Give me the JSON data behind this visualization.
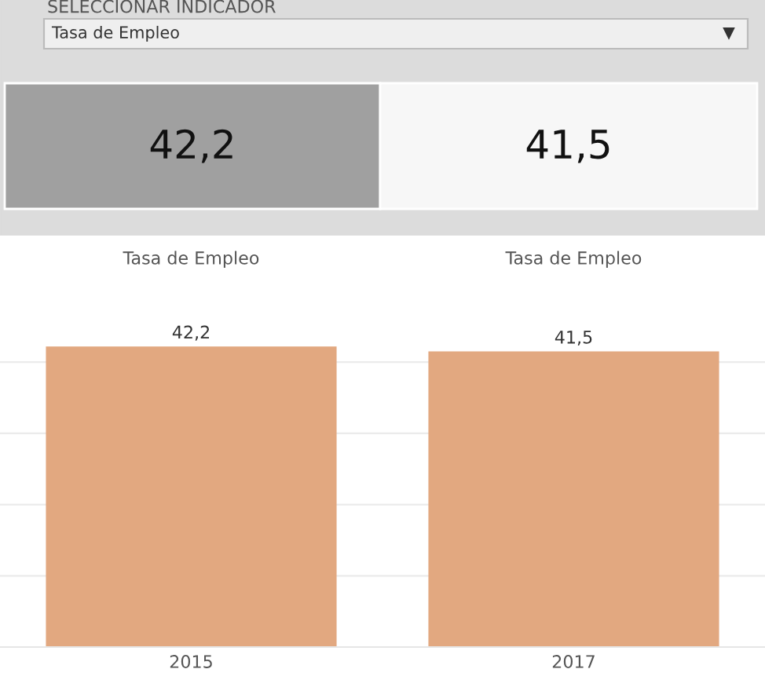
{
  "chart_data": [
    {
      "type": "other",
      "annotations": [
        "SELECCIONAR INDICADOR",
        "Tasa de Empleo",
        "42,2",
        "41,5"
      ]
    },
    {
      "type": "bar",
      "categories": [
        "2015",
        "2017"
      ],
      "values": [
        42.2,
        41.5
      ],
      "value_labels": [
        "42,2",
        "41,5"
      ],
      "color": "#e2a880",
      "yticks": [
        {
          "value": 10,
          "label": null
        },
        {
          "value": 20,
          "label": null
        },
        {
          "value": 30,
          "label": null
        },
        {
          "value": 40,
          "label": null
        }
      ],
      "grid": "y",
      "tick_labels": "x",
      "annotations": [
        "Tasa de Empleo",
        "Tasa de Empleo"
      ]
    }
  ]
}
